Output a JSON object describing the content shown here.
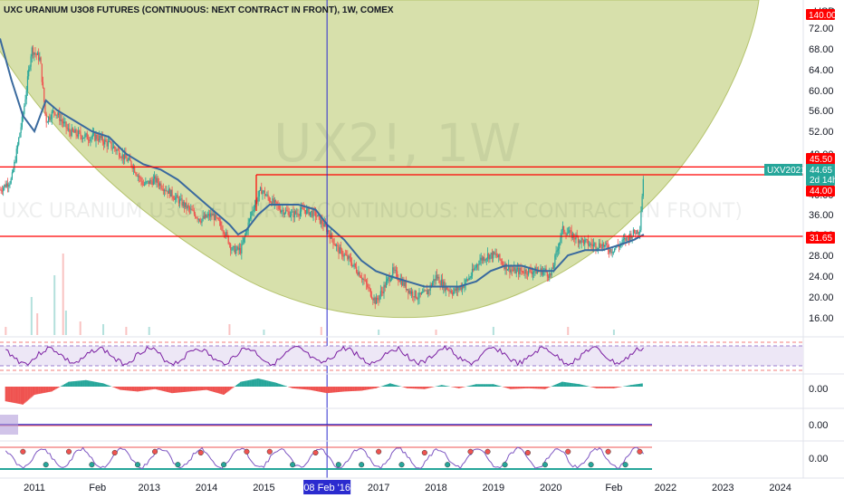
{
  "colors": {
    "up": "#26a69a",
    "down": "#ef5350",
    "ma": "#3a6a9e",
    "arc_fill": "#c9d68f",
    "arc_stroke": "#b5c36e",
    "hline": "#ff0000",
    "vline": "#2b2bcf",
    "tag_green": "#26a69a",
    "tag_red": "#ff0000",
    "tag_blue": "#2b2bcf",
    "rsi": "#7b1fa2",
    "band": "#ede7f6"
  },
  "header": {
    "title": "UXC URANIUM U3O8 FUTURES (CONTINUOUS: NEXT CONTRACT IN FRONT), 1W, COMEX",
    "currency": "USD"
  },
  "watermark": {
    "symbol": "UX2!, 1W",
    "description": "UXC URANIUM U3O8 FUTURES (CONTINUOUS: NEXT CONTRACT IN FRONT)"
  },
  "price_tags": {
    "top": "140.00",
    "symbol_label": "UXV2021",
    "last_price": "44.65",
    "countdown": "2d 14h",
    "level_upper": "45.50",
    "level_mid": "44.00",
    "level_lower": "31.65",
    "crosshair_date": "08 Feb '16"
  },
  "chart_data": {
    "type": "candlestick",
    "title": "UXC URANIUM U3O8 FUTURES (CONTINUOUS: NEXT CONTRACT IN FRONT), 1W, COMEX",
    "price_axis_ticks": [
      "72.00",
      "68.00",
      "64.00",
      "60.00",
      "56.00",
      "52.00",
      "48.00",
      "44.00",
      "40.00",
      "36.00",
      "32.00",
      "28.00",
      "24.00",
      "20.00",
      "16.00"
    ],
    "price_tick_values": [
      72,
      68,
      64,
      60,
      56,
      52,
      48,
      44,
      40,
      36,
      32,
      28,
      24,
      20,
      16
    ],
    "time_axis_labels": [
      "2011",
      "Feb",
      "2013",
      "2014",
      "2015",
      "08 Feb '16",
      "2017",
      "2018",
      "2019",
      "2020",
      "Feb",
      "2022",
      "2023",
      "2024"
    ],
    "time_label_positions": [
      2011.0,
      2012.1,
      2013.0,
      2014.0,
      2015.0,
      2016.1,
      2017.0,
      2018.0,
      2019.0,
      2020.0,
      2021.1,
      2022.0,
      2023.0,
      2024.0
    ],
    "x_range": [
      2010.4,
      2024.4
    ],
    "horizontal_levels": [
      45.5,
      44.0,
      31.65
    ],
    "vertical_marker": 2016.1,
    "indicator_axis_value": "0.00",
    "price_path": [
      [
        2010.4,
        41
      ],
      [
        2010.6,
        43
      ],
      [
        2010.8,
        55
      ],
      [
        2010.95,
        68
      ],
      [
        2011.1,
        66
      ],
      [
        2011.2,
        54
      ],
      [
        2011.35,
        56
      ],
      [
        2011.6,
        52
      ],
      [
        2011.9,
        51
      ],
      [
        2012.1,
        51
      ],
      [
        2012.4,
        49
      ],
      [
        2012.7,
        46
      ],
      [
        2012.9,
        42
      ],
      [
        2013.1,
        43
      ],
      [
        2013.3,
        41
      ],
      [
        2013.6,
        38
      ],
      [
        2013.9,
        35
      ],
      [
        2014.1,
        36
      ],
      [
        2014.3,
        33
      ],
      [
        2014.45,
        29
      ],
      [
        2014.6,
        29
      ],
      [
        2014.8,
        37
      ],
      [
        2014.95,
        41
      ],
      [
        2015.1,
        39
      ],
      [
        2015.3,
        37
      ],
      [
        2015.5,
        36
      ],
      [
        2015.7,
        37
      ],
      [
        2015.9,
        36
      ],
      [
        2016.1,
        33
      ],
      [
        2016.3,
        29
      ],
      [
        2016.5,
        27
      ],
      [
        2016.7,
        24
      ],
      [
        2016.85,
        21
      ],
      [
        2016.95,
        19
      ],
      [
        2017.1,
        22
      ],
      [
        2017.25,
        25
      ],
      [
        2017.4,
        23
      ],
      [
        2017.55,
        21
      ],
      [
        2017.7,
        20
      ],
      [
        2017.85,
        21
      ],
      [
        2018.0,
        24
      ],
      [
        2018.15,
        22
      ],
      [
        2018.3,
        21
      ],
      [
        2018.45,
        22
      ],
      [
        2018.6,
        24
      ],
      [
        2018.75,
        27
      ],
      [
        2018.9,
        28
      ],
      [
        2019.05,
        28
      ],
      [
        2019.2,
        26
      ],
      [
        2019.35,
        25
      ],
      [
        2019.5,
        25
      ],
      [
        2019.7,
        25
      ],
      [
        2019.9,
        25
      ],
      [
        2020.0,
        24
      ],
      [
        2020.2,
        33
      ],
      [
        2020.35,
        32
      ],
      [
        2020.5,
        31
      ],
      [
        2020.7,
        30
      ],
      [
        2020.9,
        30
      ],
      [
        2021.05,
        29
      ],
      [
        2021.2,
        30
      ],
      [
        2021.4,
        32
      ],
      [
        2021.55,
        33
      ],
      [
        2021.62,
        44.65
      ]
    ],
    "moving_average": [
      [
        2010.4,
        70
      ],
      [
        2010.6,
        62
      ],
      [
        2010.8,
        55
      ],
      [
        2011.0,
        52
      ],
      [
        2011.2,
        58
      ],
      [
        2011.4,
        56
      ],
      [
        2011.7,
        54
      ],
      [
        2012.0,
        52
      ],
      [
        2012.3,
        51
      ],
      [
        2012.6,
        48
      ],
      [
        2012.9,
        46
      ],
      [
        2013.2,
        45
      ],
      [
        2013.5,
        43
      ],
      [
        2013.8,
        40
      ],
      [
        2014.1,
        37
      ],
      [
        2014.4,
        34
      ],
      [
        2014.55,
        32
      ],
      [
        2014.7,
        33
      ],
      [
        2014.9,
        36
      ],
      [
        2015.1,
        38
      ],
      [
        2015.3,
        38
      ],
      [
        2015.6,
        38
      ],
      [
        2015.9,
        37
      ],
      [
        2016.1,
        34
      ],
      [
        2016.4,
        31
      ],
      [
        2016.7,
        27
      ],
      [
        2016.95,
        25
      ],
      [
        2017.2,
        24
      ],
      [
        2017.5,
        23
      ],
      [
        2017.8,
        22
      ],
      [
        2018.1,
        22
      ],
      [
        2018.4,
        22
      ],
      [
        2018.7,
        23
      ],
      [
        2018.95,
        25
      ],
      [
        2019.2,
        26
      ],
      [
        2019.5,
        26
      ],
      [
        2019.8,
        25
      ],
      [
        2020.05,
        25
      ],
      [
        2020.3,
        28
      ],
      [
        2020.6,
        29
      ],
      [
        2020.9,
        29
      ],
      [
        2021.2,
        30
      ],
      [
        2021.45,
        31
      ],
      [
        2021.62,
        32
      ]
    ],
    "volume_spikes": [
      [
        2010.5,
        3
      ],
      [
        2010.95,
        14
      ],
      [
        2011.05,
        8
      ],
      [
        2011.35,
        22
      ],
      [
        2011.5,
        30
      ],
      [
        2011.55,
        9
      ],
      [
        2011.8,
        5
      ],
      [
        2012.2,
        4
      ],
      [
        2012.6,
        3
      ],
      [
        2013.0,
        3
      ],
      [
        2014.4,
        4
      ],
      [
        2015.0,
        2
      ],
      [
        2016.0,
        3
      ],
      [
        2017.0,
        2
      ],
      [
        2018.0,
        2
      ],
      [
        2019.0,
        3
      ],
      [
        2020.3,
        3
      ],
      [
        2021.1,
        2
      ]
    ],
    "macd_hist": [
      [
        2010.5,
        -18
      ],
      [
        2010.8,
        -22
      ],
      [
        2011.0,
        -10
      ],
      [
        2011.3,
        -6
      ],
      [
        2011.6,
        6
      ],
      [
        2011.9,
        8
      ],
      [
        2012.2,
        4
      ],
      [
        2012.5,
        -4
      ],
      [
        2012.8,
        -6
      ],
      [
        2013.1,
        -3
      ],
      [
        2013.4,
        -8
      ],
      [
        2013.7,
        -6
      ],
      [
        2014.0,
        -4
      ],
      [
        2014.3,
        -10
      ],
      [
        2014.6,
        6
      ],
      [
        2014.9,
        10
      ],
      [
        2015.2,
        5
      ],
      [
        2015.5,
        -2
      ],
      [
        2015.8,
        -4
      ],
      [
        2016.1,
        -8
      ],
      [
        2016.4,
        -6
      ],
      [
        2016.7,
        -5
      ],
      [
        2016.95,
        -2
      ],
      [
        2017.2,
        4
      ],
      [
        2017.5,
        -2
      ],
      [
        2017.8,
        -3
      ],
      [
        2018.1,
        2
      ],
      [
        2018.4,
        -2
      ],
      [
        2018.7,
        3
      ],
      [
        2019.0,
        3
      ],
      [
        2019.3,
        -3
      ],
      [
        2019.6,
        -2
      ],
      [
        2019.9,
        -3
      ],
      [
        2020.2,
        6
      ],
      [
        2020.5,
        3
      ],
      [
        2020.8,
        -2
      ],
      [
        2021.1,
        -2
      ],
      [
        2021.4,
        2
      ],
      [
        2021.6,
        4
      ]
    ],
    "stoch_dots": [
      [
        2010.8,
        80
      ],
      [
        2011.2,
        20
      ],
      [
        2011.6,
        80
      ],
      [
        2012.0,
        20
      ],
      [
        2012.4,
        75
      ],
      [
        2012.8,
        20
      ],
      [
        2013.1,
        80
      ],
      [
        2013.5,
        20
      ],
      [
        2013.9,
        75
      ],
      [
        2014.3,
        20
      ],
      [
        2014.7,
        80
      ],
      [
        2015.1,
        80
      ],
      [
        2015.5,
        20
      ],
      [
        2015.9,
        75
      ],
      [
        2016.3,
        20
      ],
      [
        2016.7,
        20
      ],
      [
        2017.0,
        80
      ],
      [
        2017.4,
        20
      ],
      [
        2017.8,
        75
      ],
      [
        2018.2,
        20
      ],
      [
        2018.6,
        80
      ],
      [
        2018.9,
        80
      ],
      [
        2019.2,
        20
      ],
      [
        2019.6,
        75
      ],
      [
        2019.9,
        20
      ],
      [
        2020.3,
        80
      ],
      [
        2020.7,
        20
      ],
      [
        2021.0,
        80
      ],
      [
        2021.3,
        20
      ],
      [
        2021.55,
        80
      ]
    ]
  }
}
